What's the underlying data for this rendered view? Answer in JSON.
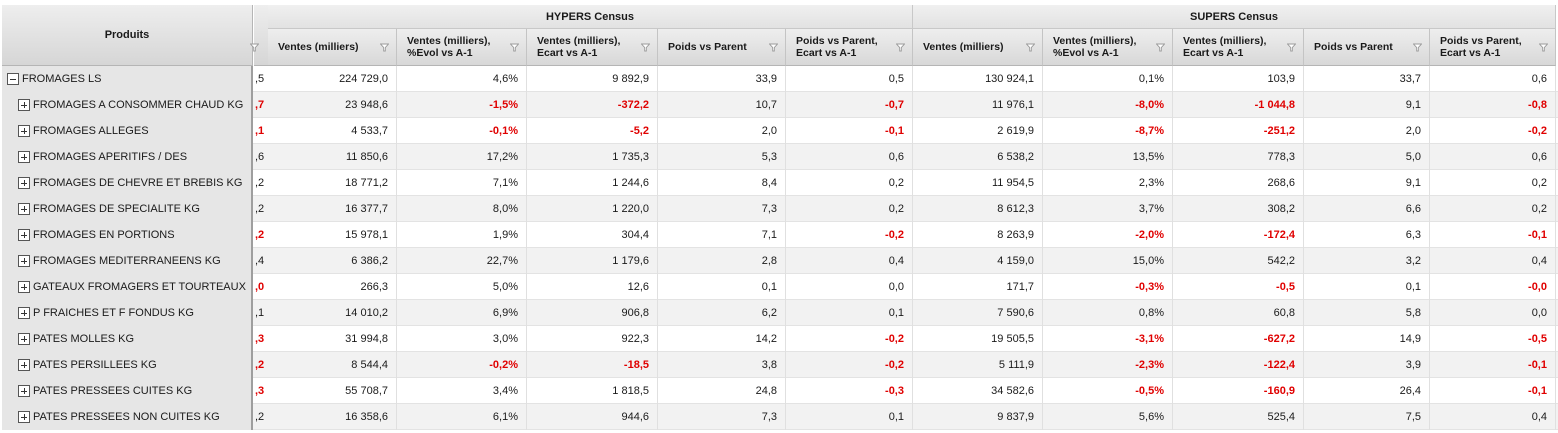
{
  "header": {
    "products_label": "Produits",
    "groups": [
      {
        "label": "HYPERS Census"
      },
      {
        "label": "SUPERS Census"
      }
    ],
    "columns": [
      "Ventes (milliers)",
      "Ventes (milliers),\n%Evol vs A-1",
      "Ventes (milliers),\nEcart vs A-1",
      "Poids vs Parent",
      "Poids vs Parent,\nEcart vs A-1",
      "Ventes (milliers)",
      "Ventes (milliers),\n%Evol vs A-1",
      "Ventes (milliers),\nEcart vs A-1",
      "Poids vs Parent",
      "Poids vs Parent,\nEcart vs A-1"
    ]
  },
  "rows": [
    {
      "label": "FROMAGES LS",
      "level": 0,
      "expanded": true,
      "trunc": ",5",
      "trunc_neg": false,
      "values": [
        "224 729,0",
        "4,6%",
        "9 892,9",
        "33,9",
        "0,5",
        "130 924,1",
        "0,1%",
        "103,9",
        "33,7",
        "0,6"
      ],
      "neg": [
        false,
        false,
        false,
        false,
        false,
        false,
        false,
        false,
        false,
        false
      ]
    },
    {
      "label": "FROMAGES A CONSOMMER CHAUD KG",
      "level": 1,
      "expanded": false,
      "trunc": ",7",
      "trunc_neg": true,
      "values": [
        "23 948,6",
        "-1,5%",
        "-372,2",
        "10,7",
        "-0,7",
        "11 976,1",
        "-8,0%",
        "-1 044,8",
        "9,1",
        "-0,8"
      ],
      "neg": [
        false,
        true,
        true,
        false,
        true,
        false,
        true,
        true,
        false,
        true
      ]
    },
    {
      "label": "FROMAGES ALLEGES",
      "level": 1,
      "expanded": false,
      "trunc": ",1",
      "trunc_neg": true,
      "values": [
        "4 533,7",
        "-0,1%",
        "-5,2",
        "2,0",
        "-0,1",
        "2 619,9",
        "-8,7%",
        "-251,2",
        "2,0",
        "-0,2"
      ],
      "neg": [
        false,
        true,
        true,
        false,
        true,
        false,
        true,
        true,
        false,
        true
      ]
    },
    {
      "label": "FROMAGES APERITIFS / DES",
      "level": 1,
      "expanded": false,
      "trunc": ",6",
      "trunc_neg": false,
      "values": [
        "11 850,6",
        "17,2%",
        "1 735,3",
        "5,3",
        "0,6",
        "6 538,2",
        "13,5%",
        "778,3",
        "5,0",
        "0,6"
      ],
      "neg": [
        false,
        false,
        false,
        false,
        false,
        false,
        false,
        false,
        false,
        false
      ]
    },
    {
      "label": "FROMAGES DE CHEVRE ET BREBIS KG",
      "level": 1,
      "expanded": false,
      "trunc": ",2",
      "trunc_neg": false,
      "values": [
        "18 771,2",
        "7,1%",
        "1 244,6",
        "8,4",
        "0,2",
        "11 954,5",
        "2,3%",
        "268,6",
        "9,1",
        "0,2"
      ],
      "neg": [
        false,
        false,
        false,
        false,
        false,
        false,
        false,
        false,
        false,
        false
      ]
    },
    {
      "label": "FROMAGES DE SPECIALITE KG",
      "level": 1,
      "expanded": false,
      "trunc": ",2",
      "trunc_neg": false,
      "values": [
        "16 377,7",
        "8,0%",
        "1 220,0",
        "7,3",
        "0,2",
        "8 612,3",
        "3,7%",
        "308,2",
        "6,6",
        "0,2"
      ],
      "neg": [
        false,
        false,
        false,
        false,
        false,
        false,
        false,
        false,
        false,
        false
      ]
    },
    {
      "label": "FROMAGES EN PORTIONS",
      "level": 1,
      "expanded": false,
      "trunc": ",2",
      "trunc_neg": true,
      "values": [
        "15 978,1",
        "1,9%",
        "304,4",
        "7,1",
        "-0,2",
        "8 263,9",
        "-2,0%",
        "-172,4",
        "6,3",
        "-0,1"
      ],
      "neg": [
        false,
        false,
        false,
        false,
        true,
        false,
        true,
        true,
        false,
        true
      ]
    },
    {
      "label": "FROMAGES MEDITERRANEENS KG",
      "level": 1,
      "expanded": false,
      "trunc": ",4",
      "trunc_neg": false,
      "values": [
        "6 386,2",
        "22,7%",
        "1 179,6",
        "2,8",
        "0,4",
        "4 159,0",
        "15,0%",
        "542,2",
        "3,2",
        "0,4"
      ],
      "neg": [
        false,
        false,
        false,
        false,
        false,
        false,
        false,
        false,
        false,
        false
      ]
    },
    {
      "label": "GATEAUX FROMAGERS ET TOURTEAUX",
      "level": 1,
      "expanded": false,
      "trunc": ",0",
      "trunc_neg": true,
      "values": [
        "266,3",
        "5,0%",
        "12,6",
        "0,1",
        "0,0",
        "171,7",
        "-0,3%",
        "-0,5",
        "0,1",
        "-0,0"
      ],
      "neg": [
        false,
        false,
        false,
        false,
        false,
        false,
        true,
        true,
        false,
        true
      ]
    },
    {
      "label": "P FRAICHES ET F FONDUS KG",
      "level": 1,
      "expanded": false,
      "trunc": ",1",
      "trunc_neg": false,
      "values": [
        "14 010,2",
        "6,9%",
        "906,8",
        "6,2",
        "0,1",
        "7 590,6",
        "0,8%",
        "60,8",
        "5,8",
        "0,0"
      ],
      "neg": [
        false,
        false,
        false,
        false,
        false,
        false,
        false,
        false,
        false,
        false
      ]
    },
    {
      "label": "PATES MOLLES KG",
      "level": 1,
      "expanded": false,
      "trunc": ",3",
      "trunc_neg": true,
      "values": [
        "31 994,8",
        "3,0%",
        "922,3",
        "14,2",
        "-0,2",
        "19 505,5",
        "-3,1%",
        "-627,2",
        "14,9",
        "-0,5"
      ],
      "neg": [
        false,
        false,
        false,
        false,
        true,
        false,
        true,
        true,
        false,
        true
      ]
    },
    {
      "label": "PATES PERSILLEES KG",
      "level": 1,
      "expanded": false,
      "trunc": ",2",
      "trunc_neg": true,
      "values": [
        "8 544,4",
        "-0,2%",
        "-18,5",
        "3,8",
        "-0,2",
        "5 111,9",
        "-2,3%",
        "-122,4",
        "3,9",
        "-0,1"
      ],
      "neg": [
        false,
        true,
        true,
        false,
        true,
        false,
        true,
        true,
        false,
        true
      ]
    },
    {
      "label": "PATES PRESSEES CUITES KG",
      "level": 1,
      "expanded": false,
      "trunc": ",3",
      "trunc_neg": true,
      "values": [
        "55 708,7",
        "3,4%",
        "1 818,5",
        "24,8",
        "-0,3",
        "34 582,6",
        "-0,5%",
        "-160,9",
        "26,4",
        "-0,1"
      ],
      "neg": [
        false,
        false,
        false,
        false,
        true,
        false,
        true,
        true,
        false,
        true
      ]
    },
    {
      "label": "PATES PRESSEES NON CUITES KG",
      "level": 1,
      "expanded": false,
      "trunc": ",2",
      "trunc_neg": false,
      "values": [
        "16 358,6",
        "6,1%",
        "944,6",
        "7,3",
        "0,1",
        "9 837,9",
        "5,6%",
        "525,4",
        "7,5",
        "0,4"
      ],
      "neg": [
        false,
        false,
        false,
        false,
        false,
        false,
        false,
        false,
        false,
        false
      ]
    }
  ],
  "icons": {
    "filter": "filter-icon",
    "expand": "plus-box-icon",
    "collapse": "minus-box-icon"
  },
  "colors": {
    "negative": "#e00000",
    "header_bg": "#e4e4e4",
    "row_alt": "#f2f2f2"
  }
}
